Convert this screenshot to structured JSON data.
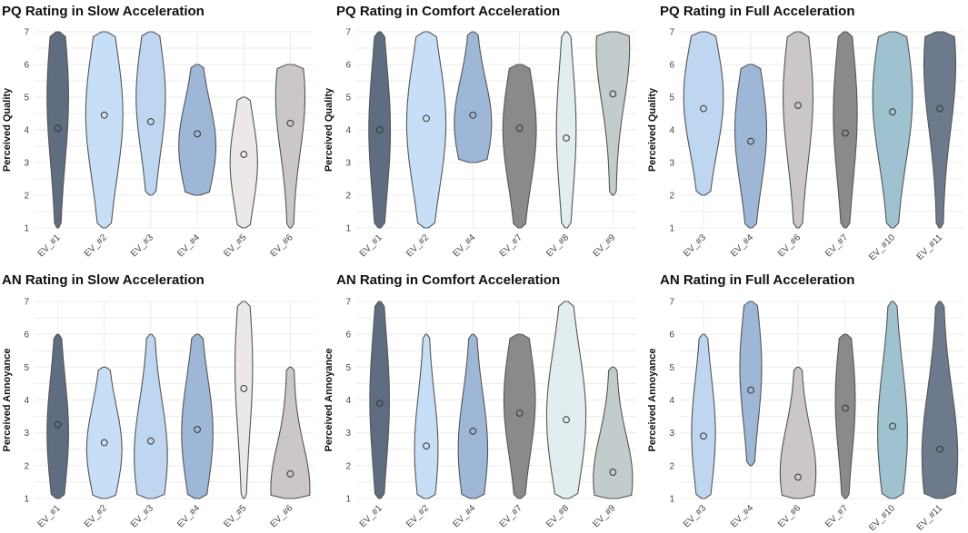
{
  "colors": {
    "EV_#1": "#5f6d80",
    "EV_#2": "#c7dff6",
    "EV_#3": "#bed6f0",
    "EV_#4": "#9eb7d6",
    "EV_#5": "#ece8e8",
    "EV_#6": "#ccc7c7",
    "EV_#7": "#8a8a8a",
    "EV_#8": "#e1edee",
    "EV_#9": "#c3cccc",
    "EV_#10": "#9ec2cf",
    "EV_#11": "#6d7a8b"
  },
  "chart_data": [
    {
      "type": "violin",
      "title": "PQ Rating in Slow Acceleration",
      "ylabel": "Perceived Quality",
      "ylim": [
        1,
        7
      ],
      "yticks": [
        "1",
        "2",
        "3",
        "4",
        "5",
        "6",
        "7"
      ],
      "categories": [
        "EV_#1",
        "EV_#2",
        "EV_#3",
        "EV_#4",
        "EV_#5",
        "EV_#6"
      ],
      "min": [
        1,
        1,
        2,
        2,
        1,
        1
      ],
      "max": [
        7,
        7,
        7,
        6,
        5,
        6
      ],
      "mean": [
        4.05,
        4.45,
        4.25,
        3.88,
        3.25,
        4.2
      ],
      "peak": [
        5,
        4.5,
        5,
        3.5,
        3,
        5
      ],
      "width": [
        0.55,
        0.95,
        0.75,
        0.95,
        0.7,
        0.75
      ]
    },
    {
      "type": "violin",
      "title": "PQ Rating in Comfort Acceleration",
      "ylabel": "Perceived Quality",
      "ylim": [
        1,
        7
      ],
      "yticks": [
        "1",
        "2",
        "3",
        "4",
        "5",
        "6",
        "7"
      ],
      "categories": [
        "EV_#1",
        "EV_#2",
        "EV_#4",
        "EV_#7",
        "EV_#8",
        "EV_#9"
      ],
      "min": [
        1,
        1,
        3,
        1,
        1,
        2
      ],
      "max": [
        7,
        7,
        7,
        6,
        7,
        7
      ],
      "mean": [
        4.0,
        4.35,
        4.45,
        4.05,
        3.75,
        5.1
      ],
      "peak": [
        4,
        4.2,
        4.2,
        4,
        4,
        6.5
      ],
      "width": [
        0.55,
        1.0,
        0.95,
        0.85,
        0.5,
        0.85
      ]
    },
    {
      "type": "violin",
      "title": "PQ Rating in Full Acceleration",
      "ylabel": "Perceived Quality",
      "ylim": [
        1,
        7
      ],
      "yticks": [
        "1",
        "2",
        "3",
        "4",
        "5",
        "6",
        "7"
      ],
      "categories": [
        "EV_#3",
        "EV_#4",
        "EV_#6",
        "EV_#7",
        "EV_#10",
        "EV_#11"
      ],
      "min": [
        2,
        1,
        1,
        1,
        1,
        1
      ],
      "max": [
        7,
        6,
        7,
        7,
        7,
        7
      ],
      "mean": [
        4.65,
        3.65,
        4.75,
        3.9,
        4.55,
        4.65
      ],
      "peak": [
        5,
        4,
        5,
        4.5,
        5,
        6
      ],
      "width": [
        1.0,
        0.8,
        0.75,
        0.6,
        1.0,
        0.8
      ]
    },
    {
      "type": "violin",
      "title": "AN Rating in Slow Acceleration",
      "ylabel": "Perceived Annoyance",
      "ylim": [
        1,
        7
      ],
      "yticks": [
        "1",
        "2",
        "3",
        "4",
        "5",
        "6",
        "7"
      ],
      "categories": [
        "EV_#1",
        "EV_#2",
        "EV_#3",
        "EV_#4",
        "EV_#5",
        "EV_#6"
      ],
      "min": [
        1,
        1,
        1,
        1,
        1,
        1
      ],
      "max": [
        6,
        5,
        6,
        6,
        7,
        5
      ],
      "mean": [
        3.25,
        2.7,
        2.75,
        3.1,
        4.35,
        1.75
      ],
      "peak": [
        3,
        2.5,
        2.3,
        3,
        5,
        1.3
      ],
      "width": [
        0.55,
        0.9,
        0.85,
        0.8,
        0.45,
        1.0
      ]
    },
    {
      "type": "violin",
      "title": "AN Rating in Comfort Acceleration",
      "ylabel": "Perceived Annoyance",
      "ylim": [
        1,
        7
      ],
      "yticks": [
        "1",
        "2",
        "3",
        "4",
        "5",
        "6",
        "7"
      ],
      "categories": [
        "EV_#1",
        "EV_#2",
        "EV_#4",
        "EV_#7",
        "EV_#8",
        "EV_#9"
      ],
      "min": [
        1,
        1,
        1,
        1,
        1,
        1
      ],
      "max": [
        7,
        6,
        6,
        6,
        7,
        5
      ],
      "mean": [
        3.9,
        2.6,
        3.05,
        3.6,
        3.4,
        1.8
      ],
      "peak": [
        4,
        2.5,
        2.5,
        4,
        3.5,
        1.6
      ],
      "width": [
        0.5,
        0.6,
        0.75,
        0.8,
        1.0,
        1.0
      ]
    },
    {
      "type": "violin",
      "title": "AN Rating in Full Acceleration",
      "ylabel": "Perceived Annoyance",
      "ylim": [
        1,
        7
      ],
      "yticks": [
        "1",
        "2",
        "3",
        "4",
        "5",
        "6",
        "7"
      ],
      "categories": [
        "EV_#3",
        "EV_#4",
        "EV_#6",
        "EV_#7",
        "EV_#10",
        "EV_#11"
      ],
      "min": [
        1,
        2,
        1,
        1,
        1,
        1
      ],
      "max": [
        6,
        7,
        5,
        6,
        7,
        7
      ],
      "mean": [
        2.9,
        4.3,
        1.65,
        3.75,
        3.2,
        2.5
      ],
      "peak": [
        3,
        5,
        1.8,
        4,
        3,
        2.3
      ],
      "width": [
        0.6,
        0.55,
        0.9,
        0.5,
        0.75,
        0.9
      ]
    }
  ]
}
